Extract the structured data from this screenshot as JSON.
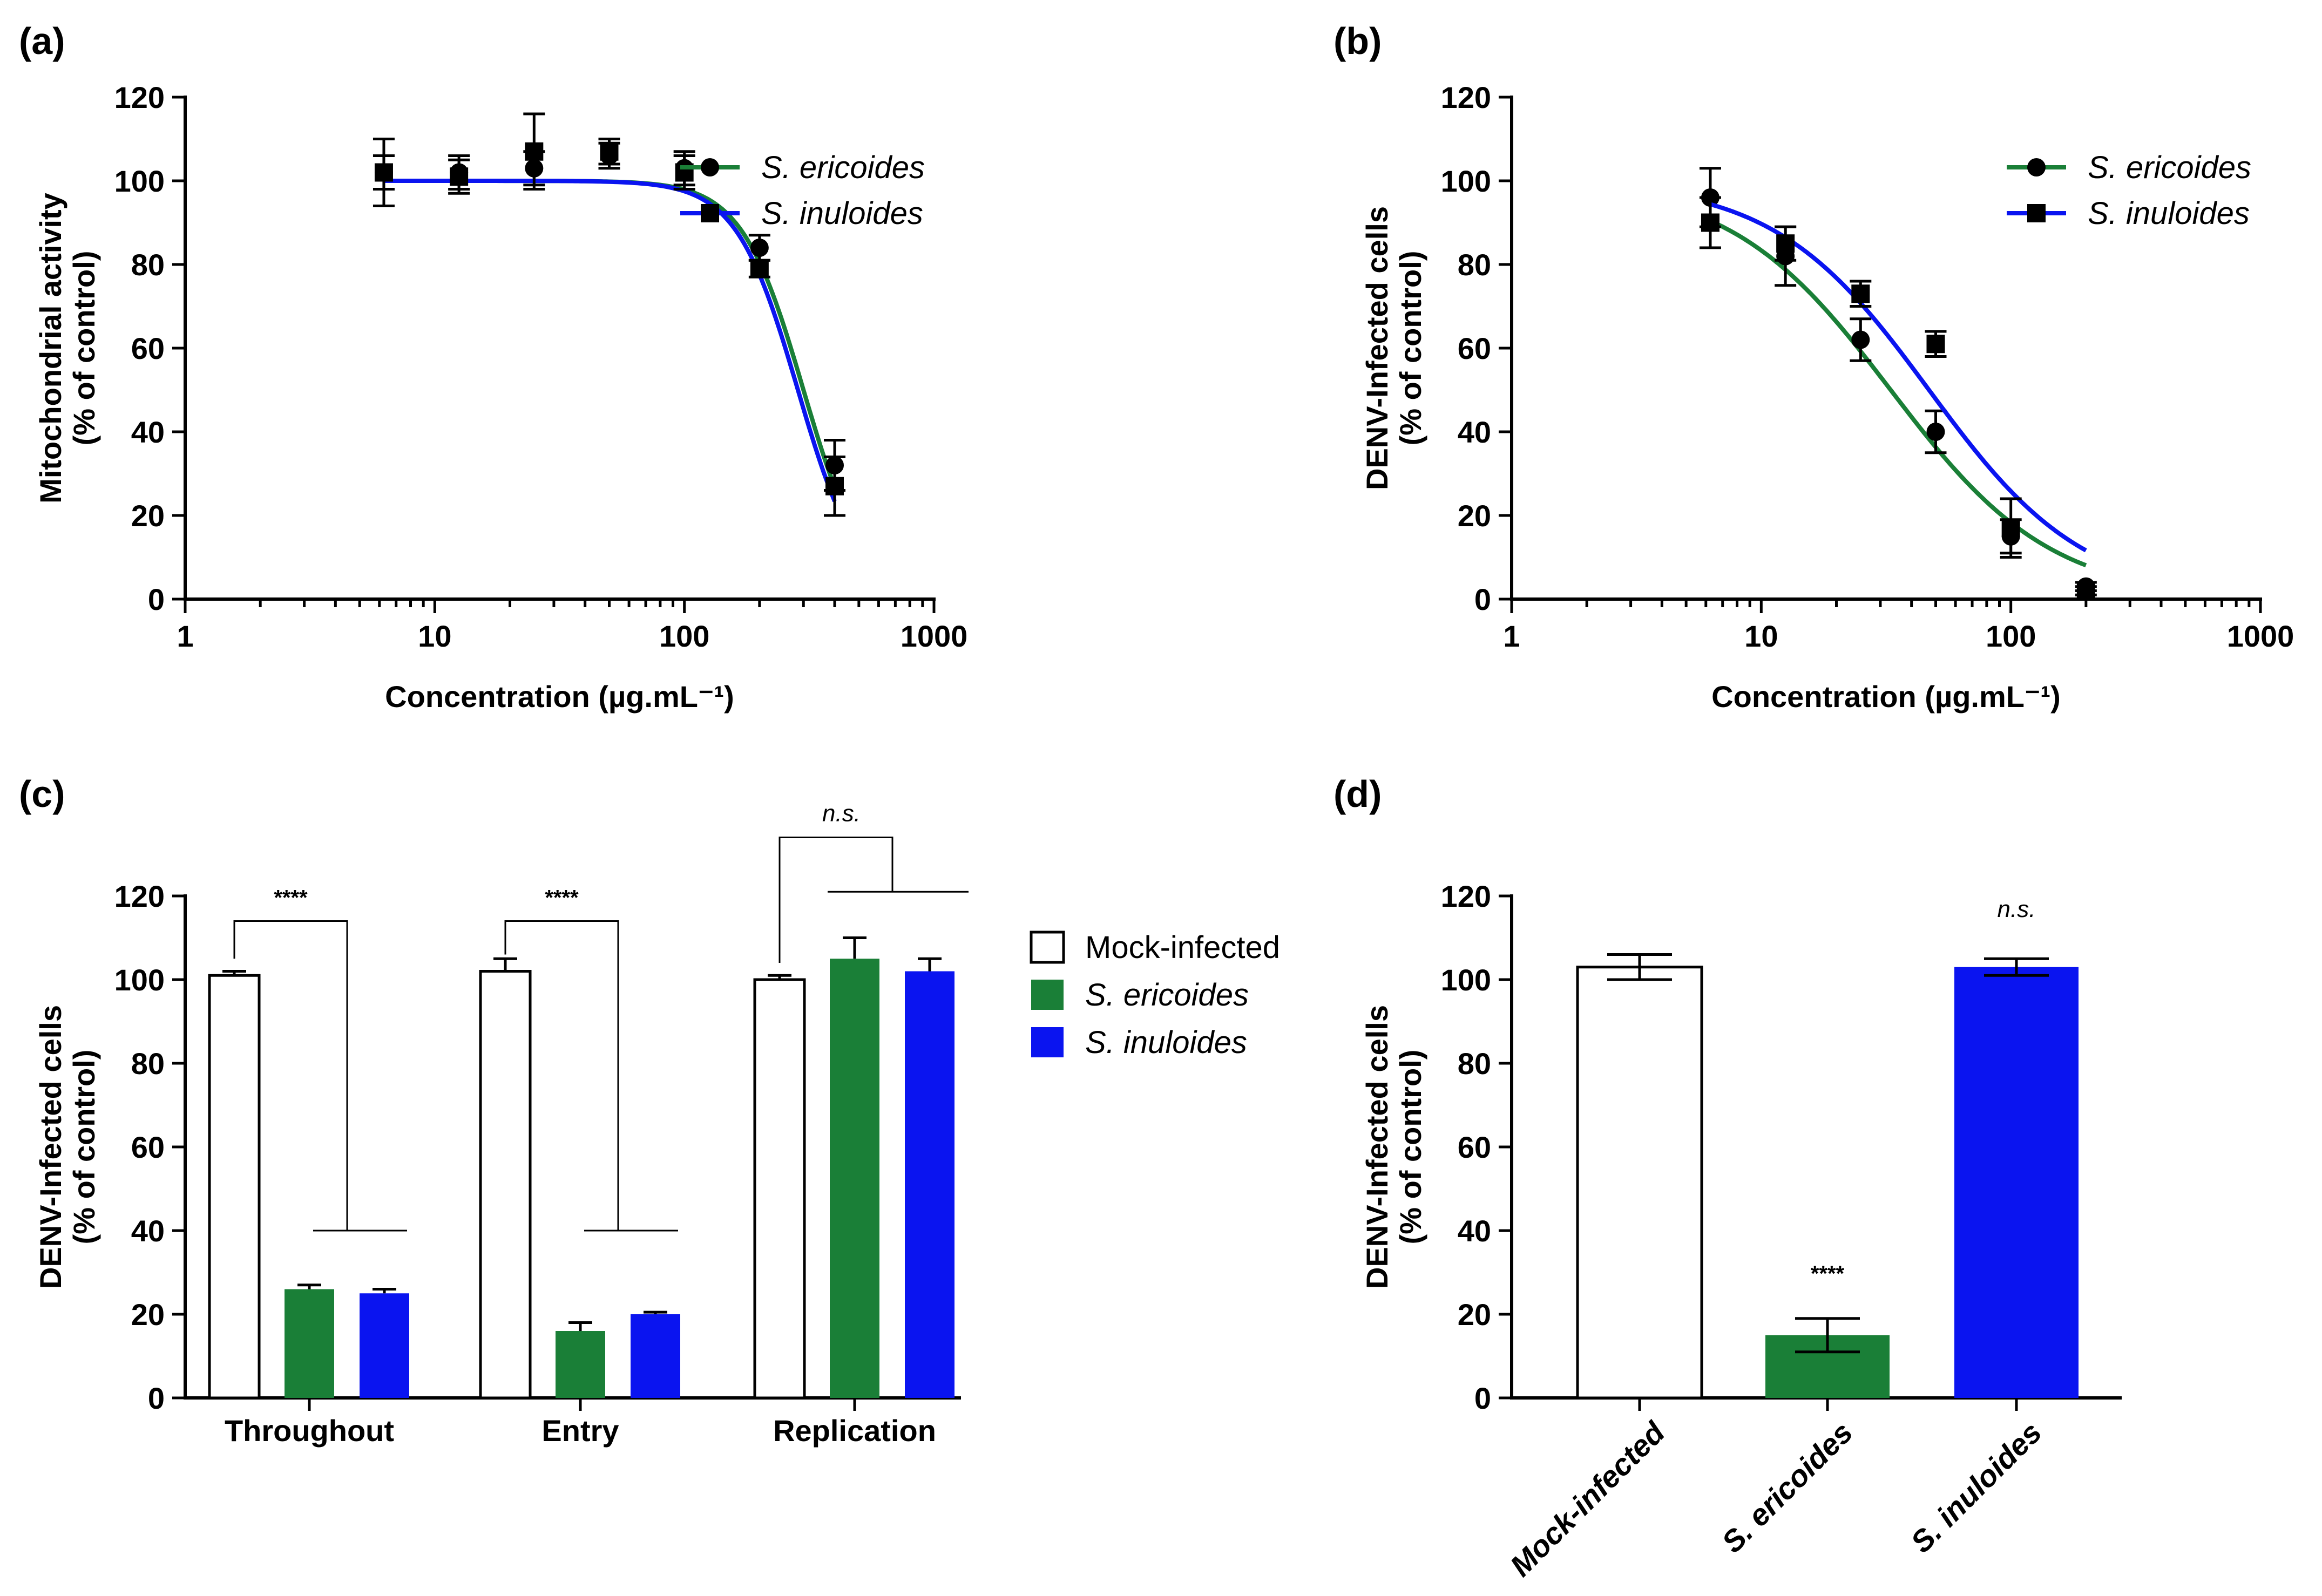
{
  "colors": {
    "ericoides": "#1a7f37",
    "inuloides": "#0a14f0",
    "mock": "#ffffff",
    "axis": "#000000"
  },
  "chart_data": [
    {
      "id": "a",
      "panel_label": "(a)",
      "type": "scatter",
      "xscale": "log",
      "xlim": [
        1,
        1000
      ],
      "ylim": [
        0,
        120
      ],
      "xticks": [
        1,
        10,
        100,
        1000
      ],
      "xtick_labels": [
        "1",
        "10",
        "100",
        "1000"
      ],
      "yticks": [
        0,
        20,
        40,
        60,
        80,
        100,
        120
      ],
      "ytick_labels": [
        "0",
        "20",
        "40",
        "60",
        "80",
        "100",
        "120"
      ],
      "xlabel": "Concentration (µg.mL⁻¹)",
      "ylabel_line1": "Mitochondrial activity",
      "ylabel_line2": "(% of control)",
      "legend": [
        "S. ericoides",
        "S. inuloides"
      ],
      "legend_position": "top-right",
      "series": [
        {
          "name": "S. ericoides",
          "marker": "circle",
          "x": [
            6.25,
            12.5,
            25,
            50,
            100,
            200,
            400
          ],
          "y": [
            102,
            102,
            103,
            106,
            103,
            84,
            32
          ],
          "err": [
            4,
            4,
            4,
            3,
            4,
            3,
            6
          ],
          "fit": {
            "top": 100,
            "bottom": 0,
            "ec50": 300,
            "hill": 3.5
          }
        },
        {
          "name": "S. inuloides",
          "marker": "square",
          "x": [
            6.25,
            12.5,
            25,
            50,
            100,
            200,
            400
          ],
          "y": [
            102,
            101,
            107,
            107,
            102,
            79,
            27
          ],
          "err": [
            8,
            4,
            9,
            3,
            4,
            2,
            7
          ],
          "fit": {
            "top": 100,
            "bottom": 0,
            "ec50": 285,
            "hill": 3.5
          }
        }
      ]
    },
    {
      "id": "b",
      "panel_label": "(b)",
      "type": "scatter",
      "xscale": "log",
      "xlim": [
        1,
        1000
      ],
      "ylim": [
        0,
        120
      ],
      "xticks": [
        1,
        10,
        100,
        1000
      ],
      "xtick_labels": [
        "1",
        "10",
        "100",
        "1000"
      ],
      "yticks": [
        0,
        20,
        40,
        60,
        80,
        100,
        120
      ],
      "ytick_labels": [
        "0",
        "20",
        "40",
        "60",
        "80",
        "100",
        "120"
      ],
      "xlabel": "Concentration (µg.mL⁻¹)",
      "ylabel_line1": "DENV-Infected cells",
      "ylabel_line2": "(% of control)",
      "legend": [
        "S. ericoides",
        "S. inuloides"
      ],
      "legend_position": "top-right",
      "series": [
        {
          "name": "S. ericoides",
          "marker": "circle",
          "x": [
            6.25,
            12.5,
            25,
            50,
            100,
            200
          ],
          "y": [
            96,
            82,
            62,
            40,
            15,
            3
          ],
          "err": [
            7,
            7,
            5,
            5,
            4,
            1
          ],
          "fit": {
            "top": 100,
            "bottom": 0,
            "ec50": 33,
            "hill": 1.35
          }
        },
        {
          "name": "S. inuloides",
          "marker": "square",
          "x": [
            6.25,
            12.5,
            25,
            50,
            100,
            200
          ],
          "y": [
            90,
            85,
            73,
            61,
            17,
            2
          ],
          "err": [
            6,
            4,
            3,
            3,
            7,
            1
          ],
          "fit": {
            "top": 100,
            "bottom": 0,
            "ec50": 47,
            "hill": 1.4
          }
        }
      ]
    },
    {
      "id": "c",
      "panel_label": "(c)",
      "type": "bar",
      "ylim": [
        0,
        120
      ],
      "yticks": [
        0,
        20,
        40,
        60,
        80,
        100,
        120
      ],
      "ytick_labels": [
        "0",
        "20",
        "40",
        "60",
        "80",
        "100",
        "120"
      ],
      "ylabel_line1": "DENV-Infected cells",
      "ylabel_line2": "(% of control)",
      "categories": [
        "Throughout",
        "Entry",
        "Replication"
      ],
      "series": [
        {
          "name": "Mock-infected",
          "values": [
            101,
            102,
            100
          ],
          "err": [
            1,
            3,
            1
          ]
        },
        {
          "name": "S. ericoides",
          "values": [
            26,
            16,
            105
          ],
          "err": [
            1,
            2,
            5
          ]
        },
        {
          "name": "S. inuloides",
          "values": [
            25,
            20,
            102
          ],
          "err": [
            1,
            0.5,
            3
          ]
        }
      ],
      "legend": [
        "Mock-infected",
        "S. ericoides",
        "S. inuloides"
      ],
      "legend_position": "right",
      "significance": [
        "****",
        "****",
        "n.s."
      ]
    },
    {
      "id": "d",
      "panel_label": "(d)",
      "type": "bar",
      "ylim": [
        0,
        120
      ],
      "yticks": [
        0,
        20,
        40,
        60,
        80,
        100,
        120
      ],
      "ytick_labels": [
        "0",
        "20",
        "40",
        "60",
        "80",
        "100",
        "120"
      ],
      "ylabel_line1": "DENV-Infected cells",
      "ylabel_line2": "(% of control)",
      "categories": [
        "Mock-infected",
        "S. ericoides",
        "S. inuloides"
      ],
      "values": [
        103,
        15,
        103
      ],
      "err": [
        3,
        4,
        2
      ],
      "significance": [
        "",
        "****",
        "n.s."
      ]
    }
  ]
}
